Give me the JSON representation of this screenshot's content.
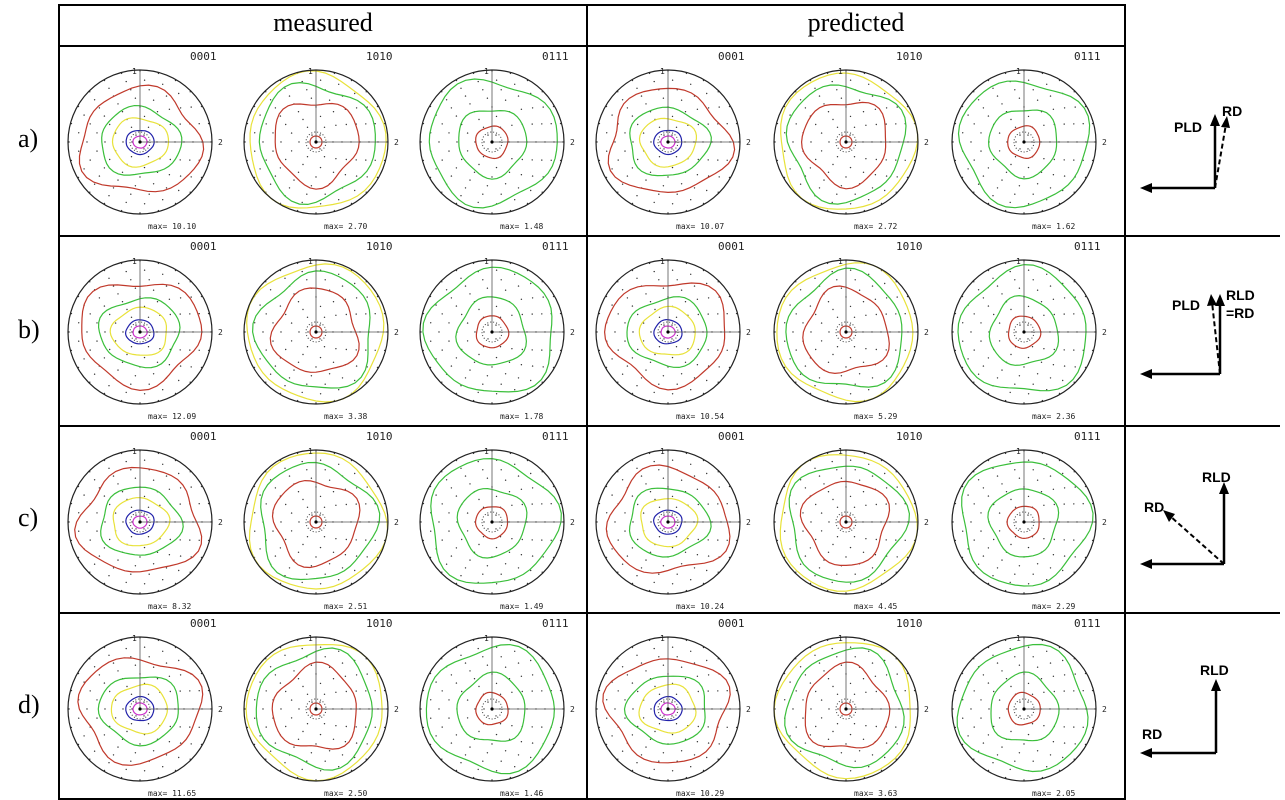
{
  "headers": {
    "measured": "measured",
    "predicted": "predicted"
  },
  "axis_labels": {
    "top": "1",
    "right": "2"
  },
  "rows": [
    {
      "label": "a)",
      "measured": [
        {
          "plane": "0001",
          "max": "max= 10.10"
        },
        {
          "plane": "1010",
          "max": "max= 2.70"
        },
        {
          "plane": "0111",
          "max": "max= 1.48"
        }
      ],
      "predicted": [
        {
          "plane": "0001",
          "max": "max= 10.07"
        },
        {
          "plane": "1010",
          "max": "max= 2.72"
        },
        {
          "plane": "0111",
          "max": "max= 1.62"
        }
      ],
      "direction_labels": [
        "PLD",
        "RD"
      ]
    },
    {
      "label": "b)",
      "measured": [
        {
          "plane": "0001",
          "max": "max= 12.09"
        },
        {
          "plane": "1010",
          "max": "max= 3.38"
        },
        {
          "plane": "0111",
          "max": "max= 1.78"
        }
      ],
      "predicted": [
        {
          "plane": "0001",
          "max": "max= 10.54"
        },
        {
          "plane": "1010",
          "max": "max= 5.29"
        },
        {
          "plane": "0111",
          "max": "max= 2.36"
        }
      ],
      "direction_labels": [
        "PLD",
        "RLD",
        "=RD"
      ]
    },
    {
      "label": "c)",
      "measured": [
        {
          "plane": "0001",
          "max": "max= 8.32"
        },
        {
          "plane": "1010",
          "max": "max= 2.51"
        },
        {
          "plane": "0111",
          "max": "max= 1.49"
        }
      ],
      "predicted": [
        {
          "plane": "0001",
          "max": "max= 10.24"
        },
        {
          "plane": "1010",
          "max": "max= 4.45"
        },
        {
          "plane": "0111",
          "max": "max= 2.29"
        }
      ],
      "direction_labels": [
        "RD",
        "RLD"
      ]
    },
    {
      "label": "d)",
      "measured": [
        {
          "plane": "0001",
          "max": "max= 11.65"
        },
        {
          "plane": "1010",
          "max": "max= 2.50"
        },
        {
          "plane": "0111",
          "max": "max= 1.46"
        }
      ],
      "predicted": [
        {
          "plane": "0001",
          "max": "max= 10.29"
        },
        {
          "plane": "1010",
          "max": "max= 3.63"
        },
        {
          "plane": "0111",
          "max": "max= 2.05"
        }
      ],
      "direction_labels": [
        "RLD",
        "RD"
      ]
    }
  ],
  "contour_colors": {
    "level1": "#c0392b",
    "level2": "#e8e23a",
    "level3": "#3bbf3b",
    "level4": "#2222aa",
    "level5": "#cc33cc"
  }
}
